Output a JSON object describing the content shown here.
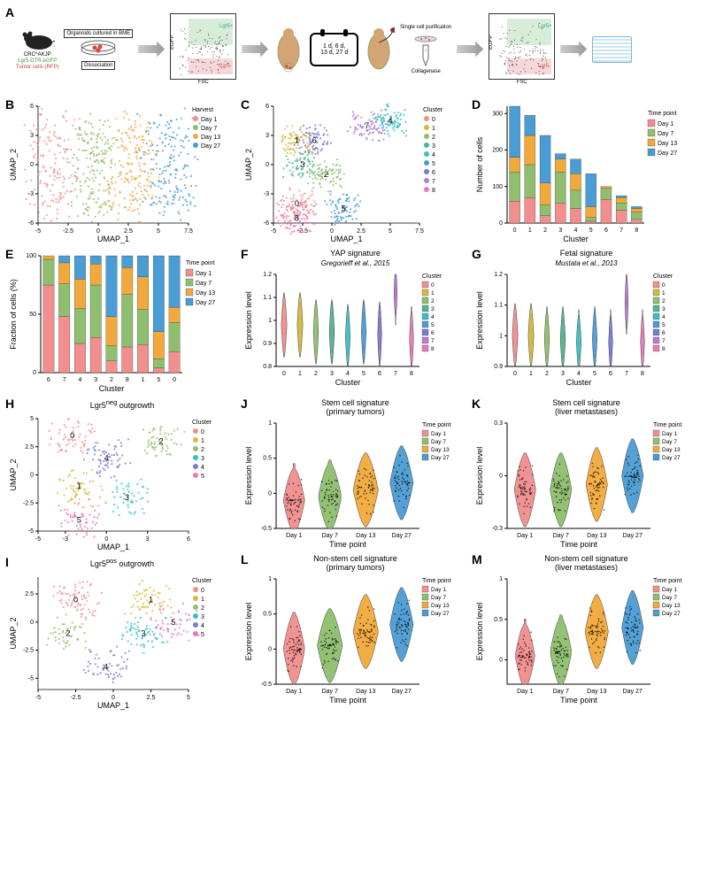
{
  "timepoint_colors": {
    "Day 1": "#f28e8e",
    "Day 7": "#8fbf6e",
    "Day 13": "#f2a93b",
    "Day 27": "#4a9dd4"
  },
  "cluster_colors_9": [
    "#f28e8e",
    "#d4b93b",
    "#8fbf6e",
    "#4fb58e",
    "#3bbfc4",
    "#4a9dd4",
    "#7a7ad4",
    "#b87ad4",
    "#e87ab8"
  ],
  "cluster_colors_6": [
    "#f28e8e",
    "#d4b93b",
    "#8fbf6e",
    "#3bbfc4",
    "#7a7ad4",
    "#e87ab8"
  ],
  "panelA": {
    "label": "A",
    "mouse_lines": [
      "CRC^AKJP",
      "Lgr5-DTR-eGFP",
      "Tumor cells (RFP)"
    ],
    "mouse_line_colors": [
      "#000000",
      "#3a9b3a",
      "#d43a3a"
    ],
    "organoid_box": "Organoids\ncultured in BME",
    "dissociation": "Dissociation",
    "facs_x": "FSC",
    "facs_y": "EGFP",
    "facs_lgr5pos": "Lgr5+",
    "facs_lgr5neg": "Lgr5-",
    "calendar": "1 d,   6 d,\n13 d, 27 d",
    "liver_label": "",
    "collagenase": "Collagenase",
    "purification": "Single cell\npurification"
  },
  "panelB": {
    "label": "B",
    "x": "UMAP_1",
    "y": "UMAP_2",
    "xlim": [
      -5,
      7.5
    ],
    "ylim": [
      -6,
      6
    ],
    "xticks": [
      -5,
      -2.5,
      0,
      2.5,
      5,
      7.5
    ],
    "yticks": [
      -6,
      -3,
      0,
      3,
      6
    ],
    "legend_title": "Harvest",
    "timepoints": [
      "Day 1",
      "Day 7",
      "Day 13",
      "Day 27"
    ]
  },
  "panelC": {
    "label": "C",
    "x": "UMAP_1",
    "y": "UMAP_2",
    "xlim": [
      -5,
      7.5
    ],
    "ylim": [
      -6,
      6
    ],
    "xticks": [
      -5,
      -2.5,
      0,
      2.5,
      5,
      7.5
    ],
    "yticks": [
      -6,
      -3,
      0,
      3,
      6
    ],
    "legend_title": "Cluster",
    "clusters": [
      0,
      1,
      2,
      3,
      4,
      5,
      6,
      7,
      8
    ],
    "centroids": {
      "0": [
        -3,
        -4
      ],
      "1": [
        -3,
        2.5
      ],
      "2": [
        -0.5,
        -1
      ],
      "3": [
        -2.5,
        0
      ],
      "4": [
        5,
        4.5
      ],
      "5": [
        1,
        -4.5
      ],
      "6": [
        -1.5,
        2.5
      ],
      "7": [
        3,
        4
      ],
      "8": [
        -3,
        -5.5
      ]
    }
  },
  "panelD": {
    "label": "D",
    "x": "Cluster",
    "y": "Number of cells",
    "clusters": [
      0,
      1,
      2,
      3,
      4,
      5,
      6,
      7,
      8
    ],
    "ylim": [
      0,
      320
    ],
    "yticks": [
      0,
      100,
      200,
      300
    ],
    "data": {
      "0": {
        "Day 1": 60,
        "Day 7": 80,
        "Day 13": 40,
        "Day 27": 140
      },
      "1": {
        "Day 1": 70,
        "Day 7": 90,
        "Day 13": 80,
        "Day 27": 55
      },
      "2": {
        "Day 1": 20,
        "Day 7": 30,
        "Day 13": 60,
        "Day 27": 130
      },
      "3": {
        "Day 1": 55,
        "Day 7": 85,
        "Day 13": 35,
        "Day 27": 15
      },
      "4": {
        "Day 1": 40,
        "Day 7": 50,
        "Day 13": 45,
        "Day 27": 40
      },
      "5": {
        "Day 1": 5,
        "Day 7": 10,
        "Day 13": 30,
        "Day 27": 90
      },
      "6": {
        "Day 1": 65,
        "Day 7": 30,
        "Day 13": 5,
        "Day 27": 0
      },
      "7": {
        "Day 1": 35,
        "Day 7": 20,
        "Day 13": 15,
        "Day 27": 5
      },
      "8": {
        "Day 1": 10,
        "Day 7": 20,
        "Day 13": 10,
        "Day 27": 5
      }
    },
    "legend_title": "Time point"
  },
  "panelE": {
    "label": "E",
    "x": "Cluster",
    "y": "Fraction of cells (%)",
    "clusters_order": [
      6,
      7,
      4,
      3,
      2,
      8,
      1,
      5,
      0
    ],
    "ylim": [
      0,
      100
    ],
    "yticks": [
      0,
      50,
      100
    ],
    "legend_title": "Time point",
    "data": {
      "6": {
        "Day 1": 75,
        "Day 7": 22,
        "Day 13": 3,
        "Day 27": 0
      },
      "7": {
        "Day 1": 48,
        "Day 7": 28,
        "Day 13": 18,
        "Day 27": 6
      },
      "4": {
        "Day 1": 25,
        "Day 7": 30,
        "Day 13": 25,
        "Day 27": 20
      },
      "3": {
        "Day 1": 30,
        "Day 7": 45,
        "Day 13": 18,
        "Day 27": 7
      },
      "2": {
        "Day 1": 10,
        "Day 7": 13,
        "Day 13": 25,
        "Day 27": 52
      },
      "8": {
        "Day 1": 22,
        "Day 7": 45,
        "Day 13": 23,
        "Day 27": 10
      },
      "1": {
        "Day 1": 24,
        "Day 7": 30,
        "Day 13": 28,
        "Day 27": 18
      },
      "5": {
        "Day 1": 4,
        "Day 7": 8,
        "Day 13": 23,
        "Day 27": 65
      },
      "0": {
        "Day 1": 18,
        "Day 7": 25,
        "Day 13": 13,
        "Day 27": 44
      }
    }
  },
  "panelF": {
    "label": "F",
    "title": "YAP signature",
    "subtitle": "Gregorieff et al., 2015",
    "x": "Cluster",
    "y": "Expression level",
    "clusters": [
      0,
      1,
      2,
      3,
      4,
      5,
      6,
      7,
      8
    ],
    "ylim": [
      0.8,
      1.2
    ],
    "yticks": [
      0.8,
      0.9,
      1.0,
      1.1,
      1.2
    ],
    "medians": [
      0.98,
      0.98,
      0.95,
      0.95,
      0.93,
      0.95,
      0.94,
      1.12,
      0.92
    ],
    "widths": [
      0.35,
      0.35,
      0.32,
      0.32,
      0.3,
      0.3,
      0.25,
      0.2,
      0.25
    ],
    "legend_title": "Cluster"
  },
  "panelG": {
    "label": "G",
    "title": "Fetal signature",
    "subtitle": "Mustata et al., 2013",
    "x": "Cluster",
    "y": "Expression level",
    "clusters": [
      0,
      1,
      2,
      3,
      4,
      5,
      6,
      7,
      8
    ],
    "ylim": [
      0.9,
      1.2
    ],
    "yticks": [
      0.9,
      1.0,
      1.1,
      1.2
    ],
    "medians": [
      1.0,
      1.0,
      0.99,
      0.99,
      0.98,
      0.99,
      0.98,
      1.11,
      0.98
    ],
    "widths": [
      0.35,
      0.35,
      0.32,
      0.32,
      0.3,
      0.3,
      0.25,
      0.2,
      0.25
    ],
    "legend_title": "Cluster"
  },
  "panelH": {
    "label": "H",
    "title": "Lgr5^neg outgrowth",
    "x": "UMAP_1",
    "y": "UMAP_2",
    "xlim": [
      -5,
      6
    ],
    "ylim": [
      -5,
      5
    ],
    "xticks": [
      -5,
      -3,
      0,
      3,
      6
    ],
    "yticks": [
      -5,
      -2.5,
      0,
      2.5,
      5
    ],
    "clusters": [
      0,
      1,
      2,
      3,
      4,
      5
    ],
    "legend_title": "Cluster"
  },
  "panelI": {
    "label": "I",
    "title": "Lgr5^pos outgrowth",
    "x": "UMAP_1",
    "y": "UMAP_2",
    "xlim": [
      -5,
      5
    ],
    "ylim": [
      -6,
      4
    ],
    "xticks": [
      -5,
      -2.5,
      0,
      2.5,
      5
    ],
    "yticks": [
      -5,
      -2.5,
      0,
      2.5
    ],
    "clusters": [
      0,
      1,
      2,
      3,
      4,
      5
    ],
    "legend_title": "Cluster"
  },
  "panelJ": {
    "label": "J",
    "title": "Stem cell signature\n(primary tumors)",
    "x": "Time point",
    "y": "Expression level",
    "timepoints": [
      "Day 1",
      "Day 7",
      "Day 13",
      "Day 27"
    ],
    "ylim": [
      -0.5,
      1.0
    ],
    "yticks": [
      -0.5,
      0,
      0.5,
      1.0
    ],
    "medians": [
      -0.1,
      -0.05,
      0.05,
      0.15
    ],
    "widths": [
      0.6,
      0.65,
      0.7,
      0.65
    ]
  },
  "panelK": {
    "label": "K",
    "title": "Stem cell signature\n(liver metastases)",
    "x": "Time point",
    "y": "Expression level",
    "timepoints": [
      "Day 1",
      "Day 7",
      "Day 13",
      "Day 27"
    ],
    "ylim": [
      -0.3,
      0.3
    ],
    "yticks": [
      -0.3,
      0,
      0.3
    ],
    "medians": [
      -0.08,
      -0.08,
      -0.05,
      0.0
    ],
    "widths": [
      0.6,
      0.6,
      0.6,
      0.6
    ]
  },
  "panelL": {
    "label": "L",
    "title": "Non-stem cell signature\n(primary tumors)",
    "x": "Time point",
    "y": "Expression level",
    "timepoints": [
      "Day 1",
      "Day 7",
      "Day 13",
      "Day 27"
    ],
    "ylim": [
      -0.5,
      1.0
    ],
    "yticks": [
      -0.5,
      0,
      0.5,
      1.0
    ],
    "medians": [
      0.0,
      0.05,
      0.25,
      0.35
    ],
    "widths": [
      0.6,
      0.7,
      0.7,
      0.65
    ]
  },
  "panelM": {
    "label": "M",
    "title": "Non-stem cell signature\n(liver metastases)",
    "x": "Time point",
    "y": "Expression level",
    "timepoints": [
      "Day 1",
      "Day 7",
      "Day 13",
      "Day 27"
    ],
    "ylim": [
      -0.3,
      1.0
    ],
    "yticks": [
      0,
      0.5,
      1.0
    ],
    "medians": [
      0.05,
      0.1,
      0.35,
      0.4
    ],
    "widths": [
      0.55,
      0.6,
      0.65,
      0.6
    ]
  }
}
